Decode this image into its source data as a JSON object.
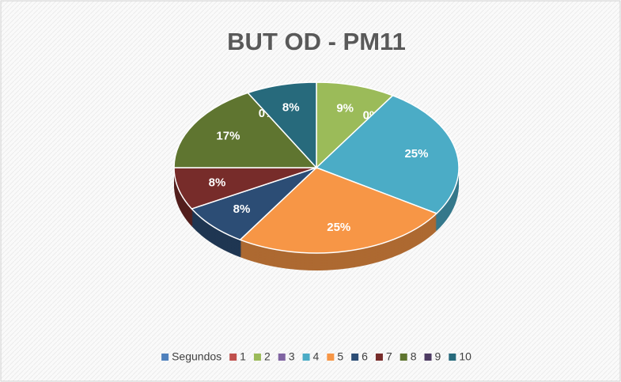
{
  "chart_data": {
    "type": "pie",
    "title": "BUT OD - PM11",
    "categories": [
      "Segundos",
      "1",
      "2",
      "3",
      "4",
      "5",
      "6",
      "7",
      "8",
      "9",
      "10"
    ],
    "values": [
      0,
      0,
      9,
      0,
      25,
      25,
      8,
      8,
      17,
      0,
      8
    ],
    "value_labels": [
      "0%",
      "0%",
      "9%",
      "0%",
      "25%",
      "25%",
      "8%",
      "8%",
      "17%",
      "0%",
      "8%"
    ],
    "colors": [
      "#4f81bd",
      "#c0504d",
      "#9bbb59",
      "#8064a2",
      "#4bacc6",
      "#f79646",
      "#2c4d75",
      "#772c2a",
      "#5f7530",
      "#4d3b62",
      "#276a7c"
    ],
    "legend": "bottom"
  }
}
